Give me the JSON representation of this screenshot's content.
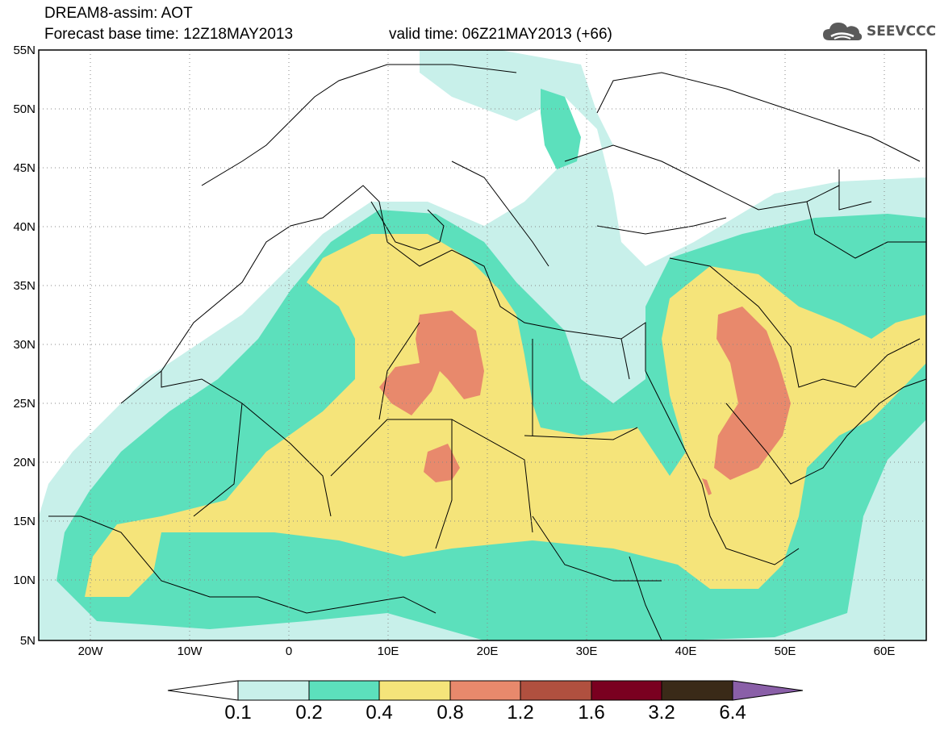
{
  "header": {
    "title_line1": "DREAM8-assim: AOT",
    "title_line2": "Forecast base time: 12Z18MAY2013",
    "valid_time": "valid time: 06Z21MAY2013 (+66)",
    "logo_text": "SEEVCCC",
    "logo_icon": "cloud-icon"
  },
  "axes": {
    "lat_labels": [
      "55N",
      "50N",
      "45N",
      "40N",
      "35N",
      "30N",
      "25N",
      "20N",
      "15N",
      "10N",
      "5N"
    ],
    "lon_labels": [
      "20W",
      "10W",
      "0",
      "10E",
      "20E",
      "30E",
      "40E",
      "50E",
      "60E"
    ]
  },
  "colorbar": {
    "labels": [
      "0.1",
      "0.2",
      "0.4",
      "0.8",
      "1.2",
      "1.6",
      "3.2",
      "6.4"
    ],
    "colors": [
      "#c8f0ea",
      "#5ce0bc",
      "#f5e47a",
      "#e8896c",
      "#b0503f",
      "#7a0020",
      "#3a2a18",
      "#8a5fa8"
    ]
  },
  "legend_colors": {
    "low_end": "#ffffff",
    "c02": "#c8f0ea",
    "c04": "#5ce0bc",
    "c08": "#f5e47a",
    "c12": "#e8896c"
  }
}
